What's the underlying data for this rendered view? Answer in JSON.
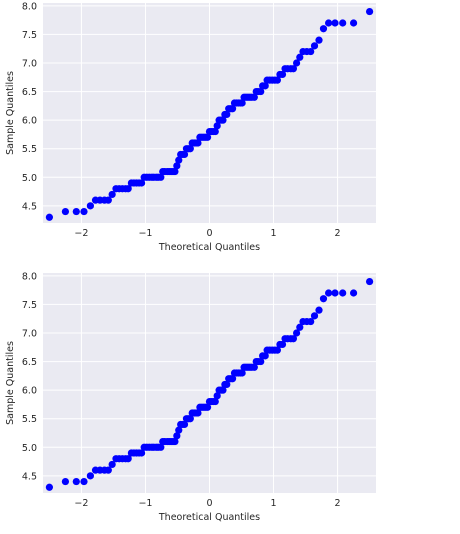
{
  "chart_data": [
    {
      "type": "scatter",
      "title": "",
      "xlabel": "Theoretical Quantiles",
      "ylabel": "Sample Quantiles",
      "xlim": [
        -2.6,
        2.6
      ],
      "ylim": [
        4.2,
        8.05
      ],
      "xticks": [
        -2,
        -1,
        0,
        1,
        2
      ],
      "xtick_labels": [
        "−2",
        "−1",
        "0",
        "1",
        "2"
      ],
      "yticks": [
        4.5,
        5.0,
        5.5,
        6.0,
        6.5,
        7.0,
        7.5,
        8.0
      ],
      "ytick_labels": [
        "4.5",
        "5.0",
        "5.5",
        "6.0",
        "6.5",
        "7.0",
        "7.5",
        "8.0"
      ],
      "grid": true,
      "marker_color": "#0000ff",
      "background_color": "#eaeaf2",
      "points": [
        [
          -2.5,
          4.3
        ],
        [
          -2.25,
          4.4
        ],
        [
          -2.08,
          4.4
        ],
        [
          -1.96,
          4.4
        ],
        [
          -1.86,
          4.5
        ],
        [
          -1.78,
          4.6
        ],
        [
          -1.71,
          4.6
        ],
        [
          -1.64,
          4.6
        ],
        [
          -1.58,
          4.6
        ],
        [
          -1.52,
          4.7
        ],
        [
          -1.46,
          4.8
        ],
        [
          -1.41,
          4.8
        ],
        [
          -1.36,
          4.8
        ],
        [
          -1.31,
          4.8
        ],
        [
          -1.27,
          4.8
        ],
        [
          -1.22,
          4.9
        ],
        [
          -1.18,
          4.9
        ],
        [
          -1.14,
          4.9
        ],
        [
          -1.1,
          4.9
        ],
        [
          -1.06,
          4.9
        ],
        [
          -1.02,
          5.0
        ],
        [
          -0.98,
          5.0
        ],
        [
          -0.94,
          5.0
        ],
        [
          -0.9,
          5.0
        ],
        [
          -0.87,
          5.0
        ],
        [
          -0.83,
          5.0
        ],
        [
          -0.8,
          5.0
        ],
        [
          -0.76,
          5.0
        ],
        [
          -0.73,
          5.1
        ],
        [
          -0.7,
          5.1
        ],
        [
          -0.66,
          5.1
        ],
        [
          -0.63,
          5.1
        ],
        [
          -0.6,
          5.1
        ],
        [
          -0.57,
          5.1
        ],
        [
          -0.54,
          5.1
        ],
        [
          -0.51,
          5.2
        ],
        [
          -0.48,
          5.3
        ],
        [
          -0.45,
          5.4
        ],
        [
          -0.42,
          5.4
        ],
        [
          -0.39,
          5.4
        ],
        [
          -0.36,
          5.5
        ],
        [
          -0.33,
          5.5
        ],
        [
          -0.3,
          5.5
        ],
        [
          -0.27,
          5.6
        ],
        [
          -0.24,
          5.6
        ],
        [
          -0.21,
          5.6
        ],
        [
          -0.18,
          5.6
        ],
        [
          -0.15,
          5.7
        ],
        [
          -0.12,
          5.7
        ],
        [
          -0.09,
          5.7
        ],
        [
          -0.06,
          5.7
        ],
        [
          -0.03,
          5.7
        ],
        [
          0.0,
          5.8
        ],
        [
          0.03,
          5.8
        ],
        [
          0.06,
          5.8
        ],
        [
          0.09,
          5.8
        ],
        [
          0.12,
          5.9
        ],
        [
          0.15,
          6.0
        ],
        [
          0.18,
          6.0
        ],
        [
          0.21,
          6.0
        ],
        [
          0.24,
          6.1
        ],
        [
          0.27,
          6.1
        ],
        [
          0.3,
          6.2
        ],
        [
          0.33,
          6.2
        ],
        [
          0.36,
          6.2
        ],
        [
          0.39,
          6.3
        ],
        [
          0.42,
          6.3
        ],
        [
          0.45,
          6.3
        ],
        [
          0.48,
          6.3
        ],
        [
          0.51,
          6.3
        ],
        [
          0.54,
          6.4
        ],
        [
          0.57,
          6.4
        ],
        [
          0.6,
          6.4
        ],
        [
          0.63,
          6.4
        ],
        [
          0.66,
          6.4
        ],
        [
          0.7,
          6.4
        ],
        [
          0.73,
          6.5
        ],
        [
          0.76,
          6.5
        ],
        [
          0.8,
          6.5
        ],
        [
          0.83,
          6.6
        ],
        [
          0.87,
          6.6
        ],
        [
          0.9,
          6.7
        ],
        [
          0.94,
          6.7
        ],
        [
          0.98,
          6.7
        ],
        [
          1.02,
          6.7
        ],
        [
          1.06,
          6.7
        ],
        [
          1.1,
          6.8
        ],
        [
          1.14,
          6.8
        ],
        [
          1.18,
          6.9
        ],
        [
          1.22,
          6.9
        ],
        [
          1.27,
          6.9
        ],
        [
          1.31,
          6.9
        ],
        [
          1.36,
          7.0
        ],
        [
          1.41,
          7.1
        ],
        [
          1.46,
          7.2
        ],
        [
          1.52,
          7.2
        ],
        [
          1.58,
          7.2
        ],
        [
          1.64,
          7.3
        ],
        [
          1.71,
          7.4
        ],
        [
          1.78,
          7.6
        ],
        [
          1.86,
          7.7
        ],
        [
          1.96,
          7.7
        ],
        [
          2.08,
          7.7
        ],
        [
          2.25,
          7.7
        ],
        [
          2.5,
          7.9
        ]
      ]
    },
    {
      "type": "scatter",
      "title": "",
      "xlabel": "Theoretical Quantiles",
      "ylabel": "Sample Quantiles",
      "xlim": [
        -2.6,
        2.6
      ],
      "ylim": [
        4.2,
        8.05
      ],
      "xticks": [
        -2,
        -1,
        0,
        1,
        2
      ],
      "xtick_labels": [
        "−2",
        "−1",
        "0",
        "1",
        "2"
      ],
      "yticks": [
        4.5,
        5.0,
        5.5,
        6.0,
        6.5,
        7.0,
        7.5,
        8.0
      ],
      "ytick_labels": [
        "4.5",
        "5.0",
        "5.5",
        "6.0",
        "6.5",
        "7.0",
        "7.5",
        "8.0"
      ],
      "grid": true,
      "marker_color": "#0000ff",
      "background_color": "#eaeaf2",
      "points": [
        [
          -2.5,
          4.3
        ],
        [
          -2.25,
          4.4
        ],
        [
          -2.08,
          4.4
        ],
        [
          -1.96,
          4.4
        ],
        [
          -1.86,
          4.5
        ],
        [
          -1.78,
          4.6
        ],
        [
          -1.71,
          4.6
        ],
        [
          -1.64,
          4.6
        ],
        [
          -1.58,
          4.6
        ],
        [
          -1.52,
          4.7
        ],
        [
          -1.46,
          4.8
        ],
        [
          -1.41,
          4.8
        ],
        [
          -1.36,
          4.8
        ],
        [
          -1.31,
          4.8
        ],
        [
          -1.27,
          4.8
        ],
        [
          -1.22,
          4.9
        ],
        [
          -1.18,
          4.9
        ],
        [
          -1.14,
          4.9
        ],
        [
          -1.1,
          4.9
        ],
        [
          -1.06,
          4.9
        ],
        [
          -1.02,
          5.0
        ],
        [
          -0.98,
          5.0
        ],
        [
          -0.94,
          5.0
        ],
        [
          -0.9,
          5.0
        ],
        [
          -0.87,
          5.0
        ],
        [
          -0.83,
          5.0
        ],
        [
          -0.8,
          5.0
        ],
        [
          -0.76,
          5.0
        ],
        [
          -0.73,
          5.1
        ],
        [
          -0.7,
          5.1
        ],
        [
          -0.66,
          5.1
        ],
        [
          -0.63,
          5.1
        ],
        [
          -0.6,
          5.1
        ],
        [
          -0.57,
          5.1
        ],
        [
          -0.54,
          5.1
        ],
        [
          -0.51,
          5.2
        ],
        [
          -0.48,
          5.3
        ],
        [
          -0.45,
          5.4
        ],
        [
          -0.42,
          5.4
        ],
        [
          -0.39,
          5.4
        ],
        [
          -0.36,
          5.5
        ],
        [
          -0.33,
          5.5
        ],
        [
          -0.3,
          5.5
        ],
        [
          -0.27,
          5.6
        ],
        [
          -0.24,
          5.6
        ],
        [
          -0.21,
          5.6
        ],
        [
          -0.18,
          5.6
        ],
        [
          -0.15,
          5.7
        ],
        [
          -0.12,
          5.7
        ],
        [
          -0.09,
          5.7
        ],
        [
          -0.06,
          5.7
        ],
        [
          -0.03,
          5.7
        ],
        [
          0.0,
          5.8
        ],
        [
          0.03,
          5.8
        ],
        [
          0.06,
          5.8
        ],
        [
          0.09,
          5.8
        ],
        [
          0.12,
          5.9
        ],
        [
          0.15,
          6.0
        ],
        [
          0.18,
          6.0
        ],
        [
          0.21,
          6.0
        ],
        [
          0.24,
          6.1
        ],
        [
          0.27,
          6.1
        ],
        [
          0.3,
          6.2
        ],
        [
          0.33,
          6.2
        ],
        [
          0.36,
          6.2
        ],
        [
          0.39,
          6.3
        ],
        [
          0.42,
          6.3
        ],
        [
          0.45,
          6.3
        ],
        [
          0.48,
          6.3
        ],
        [
          0.51,
          6.3
        ],
        [
          0.54,
          6.4
        ],
        [
          0.57,
          6.4
        ],
        [
          0.6,
          6.4
        ],
        [
          0.63,
          6.4
        ],
        [
          0.66,
          6.4
        ],
        [
          0.7,
          6.4
        ],
        [
          0.73,
          6.5
        ],
        [
          0.76,
          6.5
        ],
        [
          0.8,
          6.5
        ],
        [
          0.83,
          6.6
        ],
        [
          0.87,
          6.6
        ],
        [
          0.9,
          6.7
        ],
        [
          0.94,
          6.7
        ],
        [
          0.98,
          6.7
        ],
        [
          1.02,
          6.7
        ],
        [
          1.06,
          6.7
        ],
        [
          1.1,
          6.8
        ],
        [
          1.14,
          6.8
        ],
        [
          1.18,
          6.9
        ],
        [
          1.22,
          6.9
        ],
        [
          1.27,
          6.9
        ],
        [
          1.31,
          6.9
        ],
        [
          1.36,
          7.0
        ],
        [
          1.41,
          7.1
        ],
        [
          1.46,
          7.2
        ],
        [
          1.52,
          7.2
        ],
        [
          1.58,
          7.2
        ],
        [
          1.64,
          7.3
        ],
        [
          1.71,
          7.4
        ],
        [
          1.78,
          7.6
        ],
        [
          1.86,
          7.7
        ],
        [
          1.96,
          7.7
        ],
        [
          2.08,
          7.7
        ],
        [
          2.25,
          7.7
        ],
        [
          2.5,
          7.9
        ]
      ]
    }
  ]
}
